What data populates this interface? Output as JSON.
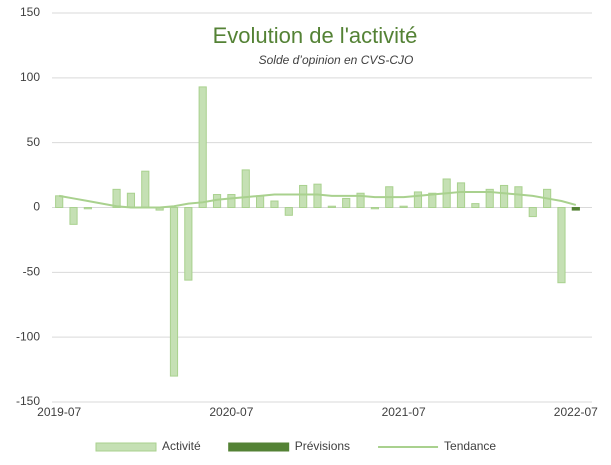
{
  "chart_data": {
    "type": "bar",
    "title": "Evolution de l'activité",
    "subtitle": "Solde d’opinion en CVS-CJO",
    "categories": [
      "2019-07",
      null,
      null,
      null,
      null,
      null,
      null,
      null,
      null,
      null,
      null,
      null,
      "2020-07",
      null,
      null,
      null,
      null,
      null,
      null,
      null,
      null,
      null,
      null,
      null,
      "2021-07",
      null,
      null,
      null,
      null,
      null,
      null,
      null,
      null,
      null,
      null,
      null,
      "2022-07"
    ],
    "series": [
      {
        "name": "Activité",
        "type": "bar",
        "color": "#c5e0b4",
        "stroke": "#a9d18e",
        "values": [
          9,
          -13,
          -1,
          0,
          14,
          11,
          28,
          -2,
          -130,
          -56,
          93,
          10,
          10,
          29,
          9,
          5,
          -6,
          17,
          18,
          1,
          7,
          11,
          -1,
          16,
          1,
          12,
          11,
          22,
          19,
          3,
          14,
          17,
          16,
          -7,
          14,
          -58,
          null
        ]
      },
      {
        "name": "Prévisions",
        "type": "bar",
        "color": "#548235",
        "stroke": "#548235",
        "values": [
          null,
          null,
          null,
          null,
          null,
          null,
          null,
          null,
          null,
          null,
          null,
          null,
          null,
          null,
          null,
          null,
          null,
          null,
          null,
          null,
          null,
          null,
          null,
          null,
          null,
          null,
          null,
          null,
          null,
          null,
          null,
          null,
          null,
          null,
          null,
          null,
          -2
        ]
      },
      {
        "name": "Tendance",
        "type": "line",
        "color": "#a9d18e",
        "values": [
          9,
          7,
          5,
          3,
          1,
          0,
          0,
          0,
          1,
          3,
          4,
          6,
          7,
          8,
          9,
          10,
          10,
          10,
          10,
          9,
          9,
          9,
          8,
          8,
          8,
          9,
          10,
          11,
          12,
          12,
          12,
          11,
          10,
          9,
          7,
          5,
          2
        ]
      }
    ],
    "ylim": [
      -150,
      150
    ],
    "yticks": [
      -150,
      -100,
      -50,
      0,
      50,
      100,
      150
    ],
    "grid": true,
    "legend": "bottom"
  }
}
